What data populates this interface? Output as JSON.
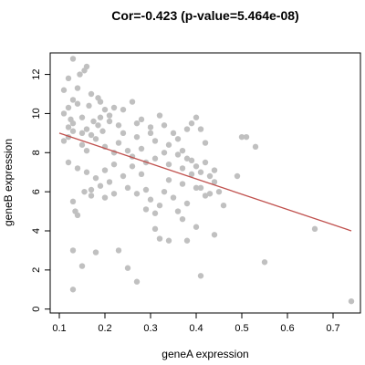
{
  "chart_data": {
    "type": "scatter",
    "title": "Cor=-0.423 (p-value=5.464e-08)",
    "xlabel": "geneA expression",
    "ylabel": "geneB expression",
    "xlim": [
      0.08,
      0.76
    ],
    "ylim": [
      -0.2,
      13.1
    ],
    "xticks": [
      0.1,
      0.2,
      0.3,
      0.4,
      0.5,
      0.6,
      0.7
    ],
    "xtick_labels": [
      "0.1",
      "0.2",
      "0.3",
      "0.4",
      "0.5",
      "0.6",
      "0.7"
    ],
    "yticks": [
      0,
      2,
      4,
      6,
      8,
      10,
      12
    ],
    "ytick_labels": [
      "0",
      "2",
      "4",
      "6",
      "8",
      "10",
      "12"
    ],
    "grid": false,
    "point_color": "#c0c0c0",
    "fit_line": {
      "color": "#c0504d",
      "x": [
        0.1,
        0.74
      ],
      "y": [
        9.0,
        4.0
      ]
    },
    "points": [
      [
        0.13,
        12.8
      ],
      [
        0.16,
        12.4
      ],
      [
        0.145,
        12.0
      ],
      [
        0.155,
        12.2
      ],
      [
        0.12,
        11.8
      ],
      [
        0.14,
        11.3
      ],
      [
        0.11,
        11.2
      ],
      [
        0.17,
        11.0
      ],
      [
        0.185,
        10.8
      ],
      [
        0.19,
        10.6
      ],
      [
        0.2,
        10.2
      ],
      [
        0.13,
        10.7
      ],
      [
        0.14,
        10.5
      ],
      [
        0.165,
        10.4
      ],
      [
        0.12,
        10.3
      ],
      [
        0.11,
        10.0
      ],
      [
        0.125,
        9.7
      ],
      [
        0.15,
        9.8
      ],
      [
        0.175,
        9.6
      ],
      [
        0.185,
        9.4
      ],
      [
        0.195,
        9.1
      ],
      [
        0.21,
        9.9
      ],
      [
        0.22,
        10.3
      ],
      [
        0.24,
        10.2
      ],
      [
        0.26,
        10.6
      ],
      [
        0.27,
        9.5
      ],
      [
        0.28,
        9.7
      ],
      [
        0.3,
        9.3
      ],
      [
        0.32,
        9.9
      ],
      [
        0.33,
        9.4
      ],
      [
        0.35,
        9.0
      ],
      [
        0.36,
        8.7
      ],
      [
        0.38,
        9.2
      ],
      [
        0.39,
        9.5
      ],
      [
        0.4,
        9.8
      ],
      [
        0.41,
        9.2
      ],
      [
        0.42,
        8.5
      ],
      [
        0.13,
        9.1
      ],
      [
        0.12,
        8.8
      ],
      [
        0.11,
        8.6
      ],
      [
        0.15,
        8.4
      ],
      [
        0.16,
        8.1
      ],
      [
        0.18,
        8.7
      ],
      [
        0.2,
        8.3
      ],
      [
        0.22,
        8.0
      ],
      [
        0.23,
        8.5
      ],
      [
        0.25,
        8.1
      ],
      [
        0.26,
        7.8
      ],
      [
        0.28,
        8.2
      ],
      [
        0.29,
        7.5
      ],
      [
        0.31,
        7.7
      ],
      [
        0.33,
        8.0
      ],
      [
        0.34,
        7.4
      ],
      [
        0.36,
        7.9
      ],
      [
        0.37,
        7.2
      ],
      [
        0.39,
        7.6
      ],
      [
        0.41,
        7.0
      ],
      [
        0.43,
        6.8
      ],
      [
        0.44,
        6.5
      ],
      [
        0.45,
        6.0
      ],
      [
        0.46,
        5.3
      ],
      [
        0.12,
        7.5
      ],
      [
        0.14,
        7.2
      ],
      [
        0.16,
        7.0
      ],
      [
        0.18,
        6.7
      ],
      [
        0.19,
        6.3
      ],
      [
        0.21,
        6.5
      ],
      [
        0.24,
        6.8
      ],
      [
        0.25,
        6.2
      ],
      [
        0.27,
        5.9
      ],
      [
        0.29,
        6.1
      ],
      [
        0.3,
        5.6
      ],
      [
        0.32,
        5.3
      ],
      [
        0.33,
        6.0
      ],
      [
        0.35,
        5.7
      ],
      [
        0.36,
        5.0
      ],
      [
        0.38,
        5.4
      ],
      [
        0.4,
        6.2
      ],
      [
        0.42,
        5.8
      ],
      [
        0.13,
        5.5
      ],
      [
        0.135,
        5.0
      ],
      [
        0.14,
        4.8
      ],
      [
        0.155,
        6.0
      ],
      [
        0.17,
        5.8
      ],
      [
        0.31,
        4.1
      ],
      [
        0.32,
        3.6
      ],
      [
        0.34,
        3.5
      ],
      [
        0.38,
        3.5
      ],
      [
        0.4,
        4.2
      ],
      [
        0.44,
        3.8
      ],
      [
        0.13,
        3.0
      ],
      [
        0.15,
        2.2
      ],
      [
        0.18,
        2.9
      ],
      [
        0.23,
        3.0
      ],
      [
        0.25,
        2.1
      ],
      [
        0.27,
        1.4
      ],
      [
        0.13,
        1.0
      ],
      [
        0.41,
        1.7
      ],
      [
        0.49,
        6.8
      ],
      [
        0.5,
        8.8
      ],
      [
        0.51,
        8.8
      ],
      [
        0.53,
        8.3
      ],
      [
        0.55,
        2.4
      ],
      [
        0.66,
        4.1
      ],
      [
        0.74,
        0.4
      ],
      [
        0.12,
        9.3
      ],
      [
        0.13,
        9.5
      ],
      [
        0.15,
        9.0
      ],
      [
        0.16,
        9.2
      ],
      [
        0.17,
        8.9
      ],
      [
        0.19,
        9.8
      ],
      [
        0.21,
        9.6
      ],
      [
        0.23,
        9.4
      ],
      [
        0.24,
        9.0
      ],
      [
        0.27,
        8.8
      ],
      [
        0.3,
        9.0
      ],
      [
        0.31,
        8.6
      ],
      [
        0.34,
        8.4
      ],
      [
        0.37,
        8.1
      ],
      [
        0.38,
        7.7
      ],
      [
        0.4,
        7.3
      ],
      [
        0.42,
        7.5
      ],
      [
        0.44,
        7.1
      ],
      [
        0.2,
        7.1
      ],
      [
        0.22,
        7.4
      ],
      [
        0.26,
        7.3
      ],
      [
        0.28,
        6.9
      ],
      [
        0.34,
        6.6
      ],
      [
        0.37,
        6.4
      ],
      [
        0.39,
        6.9
      ],
      [
        0.41,
        6.2
      ],
      [
        0.43,
        5.9
      ],
      [
        0.17,
        6.1
      ],
      [
        0.2,
        5.7
      ],
      [
        0.22,
        5.9
      ],
      [
        0.29,
        5.1
      ],
      [
        0.31,
        4.9
      ],
      [
        0.37,
        4.6
      ]
    ]
  }
}
